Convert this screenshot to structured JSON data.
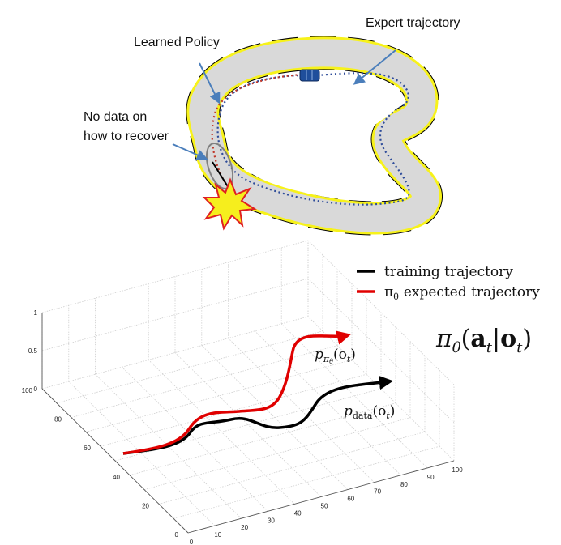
{
  "top_diagram": {
    "labels": {
      "expert": "Expert trajectory",
      "learned": "Learned Policy",
      "no_data_line1": "No data on",
      "no_data_line2": "how to recover"
    },
    "colors": {
      "track_fill": "#d9d9d9",
      "track_edge_yellow": "#f7f21a",
      "track_edge_black": "#000000",
      "arrow_blue": "#4a7ebb",
      "expert_path": "#2e4c9a",
      "learned_path": "#c0392b",
      "car": "#1f4e9b",
      "crash_fill": "#f6ee1d",
      "crash_edge": "#e02020"
    }
  },
  "plot": {
    "legend": [
      {
        "label": "training trajectory",
        "color": "#000000"
      },
      {
        "label": "expected trajectory",
        "prefix": "π",
        "sub": "θ",
        "color": "#e00000"
      }
    ],
    "policy_formula": {
      "pi": "π",
      "theta": "θ",
      "open": "(",
      "a": "a",
      "sub_t1": "t",
      "bar": "|",
      "o": "o",
      "sub_t2": "t",
      "close": ")"
    },
    "p_pi_label": {
      "p": "p",
      "sub_pi": "π",
      "sub_theta": "θ",
      "arg": "(o",
      "sub_t": "t",
      "close": ")"
    },
    "p_data_label": {
      "p": "p",
      "sub": "data",
      "arg": "(o",
      "sub_t": "t",
      "close": ")"
    },
    "z_ticks": [
      "0",
      "0.5",
      "1"
    ],
    "y_ticks": [
      "0",
      "20",
      "40",
      "60",
      "80",
      "100"
    ],
    "x_ticks": [
      "0",
      "10",
      "20",
      "30",
      "40",
      "50",
      "60",
      "70",
      "80",
      "90",
      "100"
    ]
  }
}
